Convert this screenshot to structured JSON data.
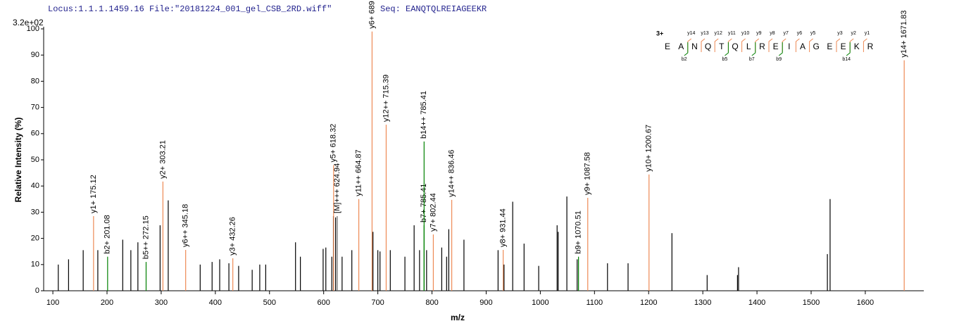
{
  "chart_data": {
    "type": "stem",
    "header_locus": "Locus:1.1.1.1459.16 File:\"20181224_001_gel_CSB_2RD.wiff\"",
    "header_seq": "Seq: EANQTQLREIAGEEKR",
    "scale_label": "3.2e+02",
    "y_label": "Relative  Intensity (%)",
    "x_label": "m/z",
    "xlim": [
      83,
      1708
    ],
    "ylim": [
      0,
      100
    ],
    "xticks": [
      100,
      200,
      300,
      400,
      500,
      600,
      700,
      800,
      900,
      1000,
      1100,
      1200,
      1300,
      1400,
      1500,
      1600
    ],
    "yticks": [
      0,
      10,
      20,
      30,
      40,
      50,
      60,
      70,
      80,
      90,
      100
    ],
    "x": [
      110,
      129,
      156,
      175.12,
      183,
      201.08,
      229,
      244,
      257,
      272.15,
      298,
      303.21,
      313,
      345.18,
      372,
      394,
      408,
      425,
      432.26,
      443,
      468,
      482,
      493,
      548,
      557,
      599,
      604,
      615,
      618,
      618.32,
      622,
      624.94,
      634,
      652,
      664.87,
      689.35,
      691,
      700,
      704,
      715.39,
      723,
      750,
      767,
      777,
      785.41,
      785.41,
      790,
      802.44,
      818,
      827,
      831,
      836.46,
      859,
      922,
      931.44,
      933,
      949,
      970,
      997,
      1031,
      1033,
      1049,
      1068,
      1070.51,
      1087.58,
      1124,
      1162,
      1200.67,
      1243,
      1308,
      1364,
      1366,
      1530,
      1535,
      1671.83
    ],
    "values": [
      10,
      12,
      15.5,
      28.5,
      15.5,
      13,
      19.5,
      15.5,
      18.5,
      11,
      25,
      41.7,
      34.5,
      15.6,
      10,
      11,
      12,
      10.5,
      12.4,
      9.5,
      8,
      10,
      10,
      18.5,
      13,
      16,
      16.5,
      13,
      28.5,
      48,
      28,
      28.5,
      13,
      15.5,
      35,
      99,
      22.5,
      15.5,
      15,
      63.4,
      15.5,
      13,
      25,
      15.5,
      25,
      57,
      15.5,
      21.5,
      16.5,
      13,
      23.5,
      34.7,
      19.5,
      15.5,
      15.6,
      10,
      34,
      18,
      9.5,
      25,
      22.5,
      36,
      12,
      13,
      35.5,
      10.5,
      10.5,
      44.4,
      22,
      6,
      6,
      9,
      14,
      35,
      88
    ],
    "colors": [
      "#000000",
      "#000000",
      "#000000",
      "#ee8a55",
      "#000000",
      "#008000",
      "#000000",
      "#000000",
      "#000000",
      "#008000",
      "#000000",
      "#ee8a55",
      "#000000",
      "#ee8a55",
      "#000000",
      "#000000",
      "#000000",
      "#000000",
      "#ee8a55",
      "#000000",
      "#000000",
      "#000000",
      "#000000",
      "#000000",
      "#000000",
      "#000000",
      "#000000",
      "#000000",
      "#000000",
      "#ee8a55",
      "#000000",
      "#666666",
      "#000000",
      "#000000",
      "#ee8a55",
      "#ee8a55",
      "#000000",
      "#000000",
      "#000000",
      "#ee8a55",
      "#000000",
      "#000000",
      "#000000",
      "#000000",
      "#008000",
      "#008000",
      "#000000",
      "#ee8a55",
      "#000000",
      "#000000",
      "#000000",
      "#ee8a55",
      "#000000",
      "#000000",
      "#ee8a55",
      "#000000",
      "#000000",
      "#000000",
      "#000000",
      "#000000",
      "#000000",
      "#000000",
      "#000000",
      "#008000",
      "#ee8a55",
      "#000000",
      "#000000",
      "#ee8a55",
      "#000000",
      "#000000",
      "#000000",
      "#000000",
      "#000000",
      "#000000",
      "#ee8a55"
    ],
    "peak_labels": [
      null,
      null,
      null,
      "y1+ 175.12",
      null,
      "b2+ 201.08",
      null,
      null,
      null,
      "b5++ 272.15",
      null,
      "y2+ 303.21",
      null,
      "y6++ 345.18",
      null,
      null,
      null,
      null,
      "y3+ 432.26",
      null,
      null,
      null,
      null,
      null,
      null,
      null,
      null,
      null,
      null,
      "y5+ 618.32",
      null,
      "[M]+++ 624.94",
      null,
      null,
      "y11++ 664.87",
      "y6+ 689",
      null,
      null,
      null,
      "y12++ 715.39",
      null,
      null,
      null,
      null,
      "b7+ 785.41",
      "b14++ 785.41",
      null,
      "y7+ 802.44",
      null,
      null,
      null,
      "y14++ 836.46",
      null,
      null,
      "y8+ 931.44",
      null,
      null,
      null,
      null,
      null,
      null,
      null,
      null,
      "b9+ 1070.51",
      "y9+ 1087.58",
      null,
      null,
      "y10+ 1200.67",
      null,
      null,
      null,
      null,
      null,
      null,
      "y14+ 1671.83"
    ],
    "sequence_annotation": {
      "charge": "3+",
      "residues": [
        "E",
        "A",
        "N",
        "Q",
        "T",
        "Q",
        "L",
        "R",
        "E",
        "I",
        "A",
        "G",
        "E",
        "E",
        "K",
        "R"
      ],
      "y_ions": [
        "y14",
        "y13",
        "y12",
        "y11",
        "y10",
        "y9",
        "y8",
        "y7",
        "y6",
        "y5",
        "y3",
        "y2",
        "y1"
      ],
      "b_ions": [
        "b2",
        "b5",
        "b7",
        "b9",
        "b14"
      ]
    }
  }
}
